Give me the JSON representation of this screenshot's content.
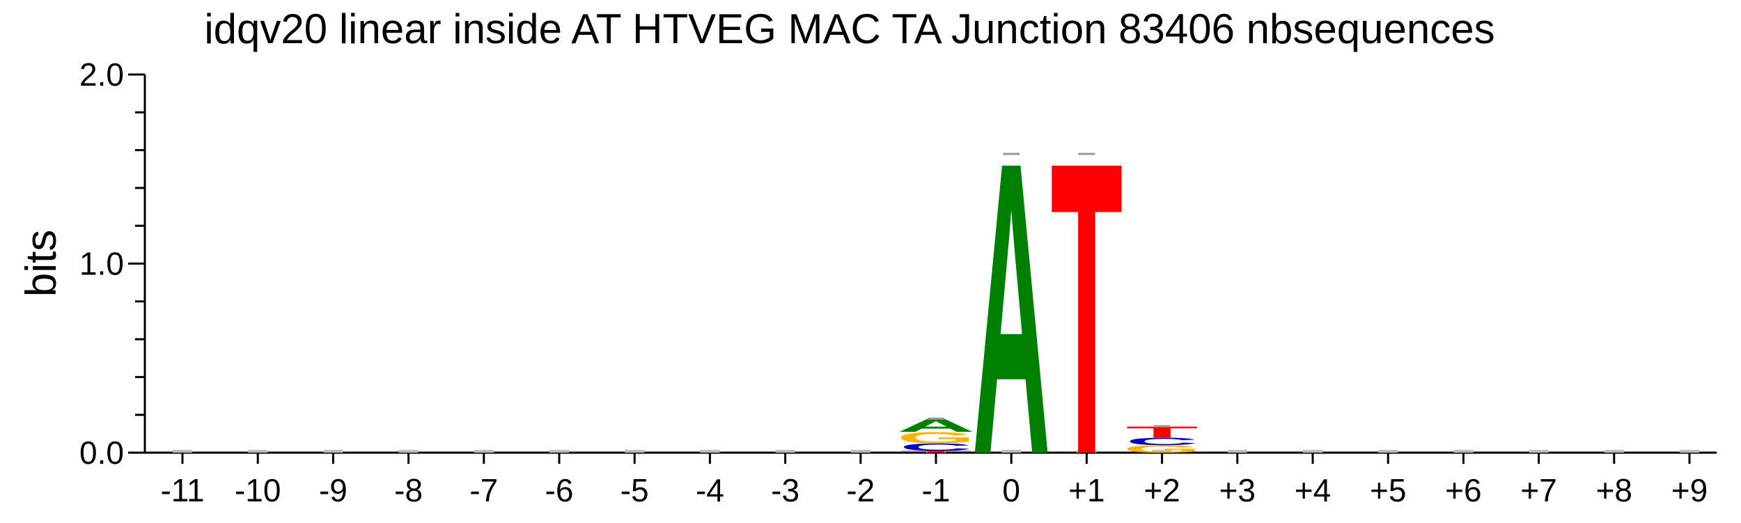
{
  "chart_data": {
    "type": "sequence-logo",
    "title": "idqv20 linear inside AT HTVEG MAC TA Junction 83406 nbsequences",
    "ylabel": "bits",
    "xlabel": "",
    "ylim": [
      0,
      2
    ],
    "yticks": [
      "0.0",
      "1.0",
      "2.0"
    ],
    "positions": [
      "-11",
      "-10",
      "-9",
      "-8",
      "-7",
      "-6",
      "-5",
      "-4",
      "-3",
      "-2",
      "-1",
      "0",
      "+1",
      "+2",
      "+3",
      "+4",
      "+5",
      "+6",
      "+7",
      "+8",
      "+9"
    ],
    "colors": {
      "A": "#008000",
      "C": "#0000cc",
      "G": "#ffb300",
      "T": "#ff0000"
    },
    "stacks": [
      {
        "pos": "-1",
        "letters": [
          {
            "base": "T",
            "bits": 0.01
          },
          {
            "base": "C",
            "bits": 0.04
          },
          {
            "base": "G",
            "bits": 0.06
          },
          {
            "base": "A",
            "bits": 0.07
          }
        ]
      },
      {
        "pos": "0",
        "letters": [
          {
            "base": "A",
            "bits": 1.58
          }
        ]
      },
      {
        "pos": "+1",
        "letters": [
          {
            "base": "T",
            "bits": 1.58
          }
        ]
      },
      {
        "pos": "+2",
        "letters": [
          {
            "base": "G",
            "bits": 0.04
          },
          {
            "base": "C",
            "bits": 0.04
          },
          {
            "base": "T",
            "bits": 0.06
          }
        ]
      }
    ]
  }
}
